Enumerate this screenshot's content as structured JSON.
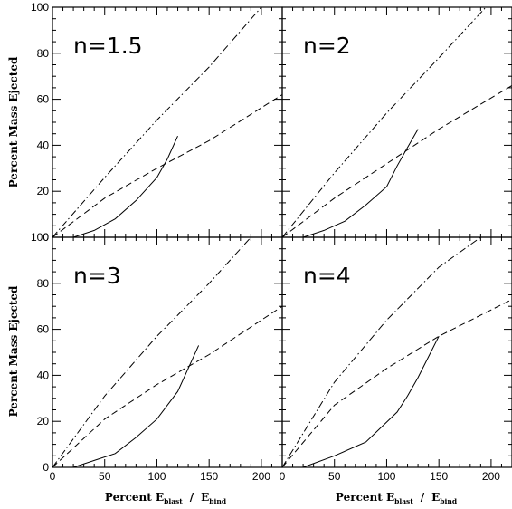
{
  "ylabel": "Percent Mass Ejected",
  "xlabel": {
    "prefix": "Percent E",
    "sub1": "blast",
    "slash": "/",
    "e2": "E",
    "sub2": "bind"
  },
  "chart_data": [
    {
      "type": "line",
      "panel_label": "n=1.5",
      "xlim": [
        0,
        220
      ],
      "ylim": [
        0,
        100
      ],
      "x_ticks": [
        0,
        50,
        100,
        150,
        200
      ],
      "y_ticks": [
        0,
        20,
        40,
        60,
        80,
        100
      ],
      "series": [
        {
          "style": "solid",
          "points": [
            [
              20,
              0
            ],
            [
              40,
              3
            ],
            [
              60,
              8
            ],
            [
              80,
              16
            ],
            [
              100,
              26
            ],
            [
              110,
              34
            ],
            [
              120,
              44
            ]
          ]
        },
        {
          "style": "dashed",
          "points": [
            [
              0,
              0
            ],
            [
              50,
              17
            ],
            [
              100,
              30
            ],
            [
              150,
              42
            ],
            [
              220,
              62
            ]
          ]
        },
        {
          "style": "dashdot",
          "points": [
            [
              0,
              0
            ],
            [
              50,
              26
            ],
            [
              100,
              51
            ],
            [
              150,
              74
            ],
            [
              200,
              100
            ]
          ]
        }
      ]
    },
    {
      "type": "line",
      "panel_label": "n=2",
      "xlim": [
        0,
        220
      ],
      "ylim": [
        0,
        100
      ],
      "x_ticks": [
        0,
        50,
        100,
        150,
        200
      ],
      "y_ticks": [
        0,
        20,
        40,
        60,
        80,
        100
      ],
      "series": [
        {
          "style": "solid",
          "points": [
            [
              20,
              0
            ],
            [
              40,
              3
            ],
            [
              60,
              7
            ],
            [
              80,
              14
            ],
            [
              100,
              22
            ],
            [
              110,
              31
            ],
            [
              120,
              39
            ],
            [
              130,
              47
            ]
          ]
        },
        {
          "style": "dashed",
          "points": [
            [
              0,
              0
            ],
            [
              50,
              17
            ],
            [
              100,
              32
            ],
            [
              150,
              47
            ],
            [
              220,
              66
            ]
          ]
        },
        {
          "style": "dashdot",
          "points": [
            [
              0,
              0
            ],
            [
              50,
              28
            ],
            [
              100,
              54
            ],
            [
              150,
              78
            ],
            [
              195,
              100
            ]
          ]
        }
      ]
    },
    {
      "type": "line",
      "panel_label": "n=3",
      "xlim": [
        0,
        220
      ],
      "ylim": [
        0,
        100
      ],
      "x_ticks": [
        0,
        50,
        100,
        150,
        200
      ],
      "y_ticks": [
        0,
        20,
        40,
        60,
        80,
        100
      ],
      "series": [
        {
          "style": "solid",
          "points": [
            [
              20,
              0
            ],
            [
              40,
              3
            ],
            [
              60,
              6
            ],
            [
              80,
              13
            ],
            [
              100,
              21
            ],
            [
              120,
              33
            ],
            [
              140,
              53
            ]
          ]
        },
        {
          "style": "dashed",
          "points": [
            [
              0,
              0
            ],
            [
              50,
              21
            ],
            [
              100,
              36
            ],
            [
              150,
              49
            ],
            [
              220,
              70
            ]
          ]
        },
        {
          "style": "dashdot",
          "points": [
            [
              0,
              0
            ],
            [
              50,
              31
            ],
            [
              100,
              57
            ],
            [
              150,
              80
            ],
            [
              190,
              100
            ]
          ]
        }
      ]
    },
    {
      "type": "line",
      "panel_label": "n=4",
      "xlim": [
        0,
        220
      ],
      "ylim": [
        0,
        100
      ],
      "x_ticks": [
        0,
        50,
        100,
        150,
        200
      ],
      "y_ticks": [
        0,
        20,
        40,
        60,
        80,
        100
      ],
      "series": [
        {
          "style": "solid",
          "points": [
            [
              20,
              0
            ],
            [
              50,
              5
            ],
            [
              80,
              11
            ],
            [
              110,
              24
            ],
            [
              120,
              31
            ],
            [
              130,
              39
            ],
            [
              140,
              48
            ],
            [
              150,
              57
            ]
          ]
        },
        {
          "style": "dashed",
          "points": [
            [
              0,
              0
            ],
            [
              50,
              27
            ],
            [
              100,
              43
            ],
            [
              150,
              57
            ],
            [
              220,
              73
            ]
          ]
        },
        {
          "style": "dashdot",
          "points": [
            [
              0,
              0
            ],
            [
              50,
              37
            ],
            [
              100,
              64
            ],
            [
              150,
              87
            ],
            [
              190,
              100
            ]
          ]
        }
      ]
    }
  ]
}
